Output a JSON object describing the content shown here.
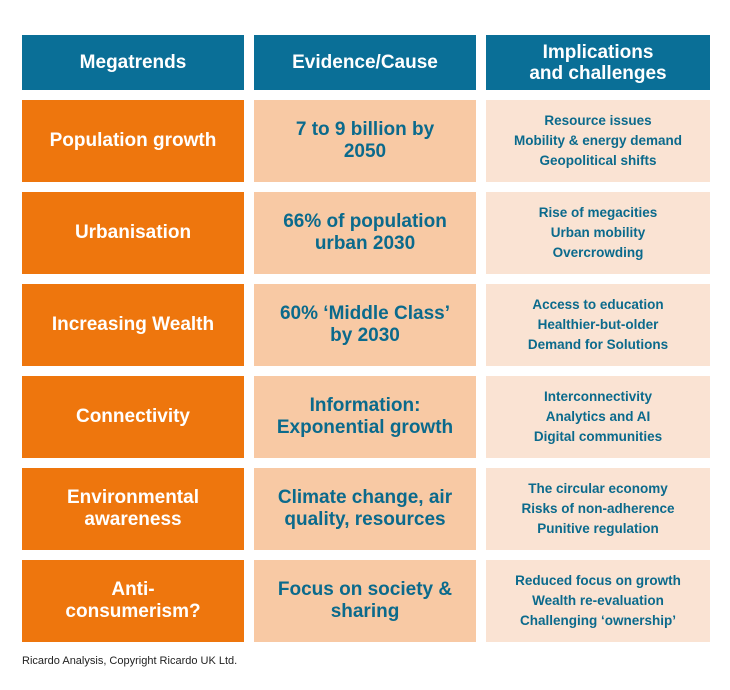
{
  "headers": [
    "Megatrends",
    "Evidence/Cause",
    "Implications and challenges"
  ],
  "rows": [
    {
      "trend": "Population growth",
      "evidence": "7 to 9 billion by 2050",
      "implications": [
        "Resource issues",
        "Mobility & energy demand",
        "Geopolitical shifts"
      ]
    },
    {
      "trend": "Urbanisation",
      "evidence": "66% of population urban 2030",
      "implications": [
        "Rise of megacities",
        "Urban mobility",
        "Overcrowding"
      ]
    },
    {
      "trend": "Increasing Wealth",
      "evidence": "60% ‘Middle Class’ by 2030",
      "implications": [
        "Access to education",
        "Healthier-but-older",
        "Demand for Solutions"
      ]
    },
    {
      "trend": "Connectivity",
      "evidence": "Information: Exponential growth",
      "implications": [
        "Interconnectivity",
        "Analytics and AI",
        "Digital communities"
      ]
    },
    {
      "trend": "Environmental awareness",
      "evidence": "Climate change, air quality, resources",
      "implications": [
        "The circular economy",
        "Risks of non-adherence",
        "Punitive regulation"
      ]
    },
    {
      "trend": "Anti-consumerism?",
      "evidence": "Focus on society & sharing",
      "implications": [
        "Reduced focus on growth",
        "Wealth re-evaluation",
        "Challenging ‘ownership’"
      ]
    }
  ],
  "caption": "Ricardo Analysis, Copyright Ricardo UK Ltd."
}
